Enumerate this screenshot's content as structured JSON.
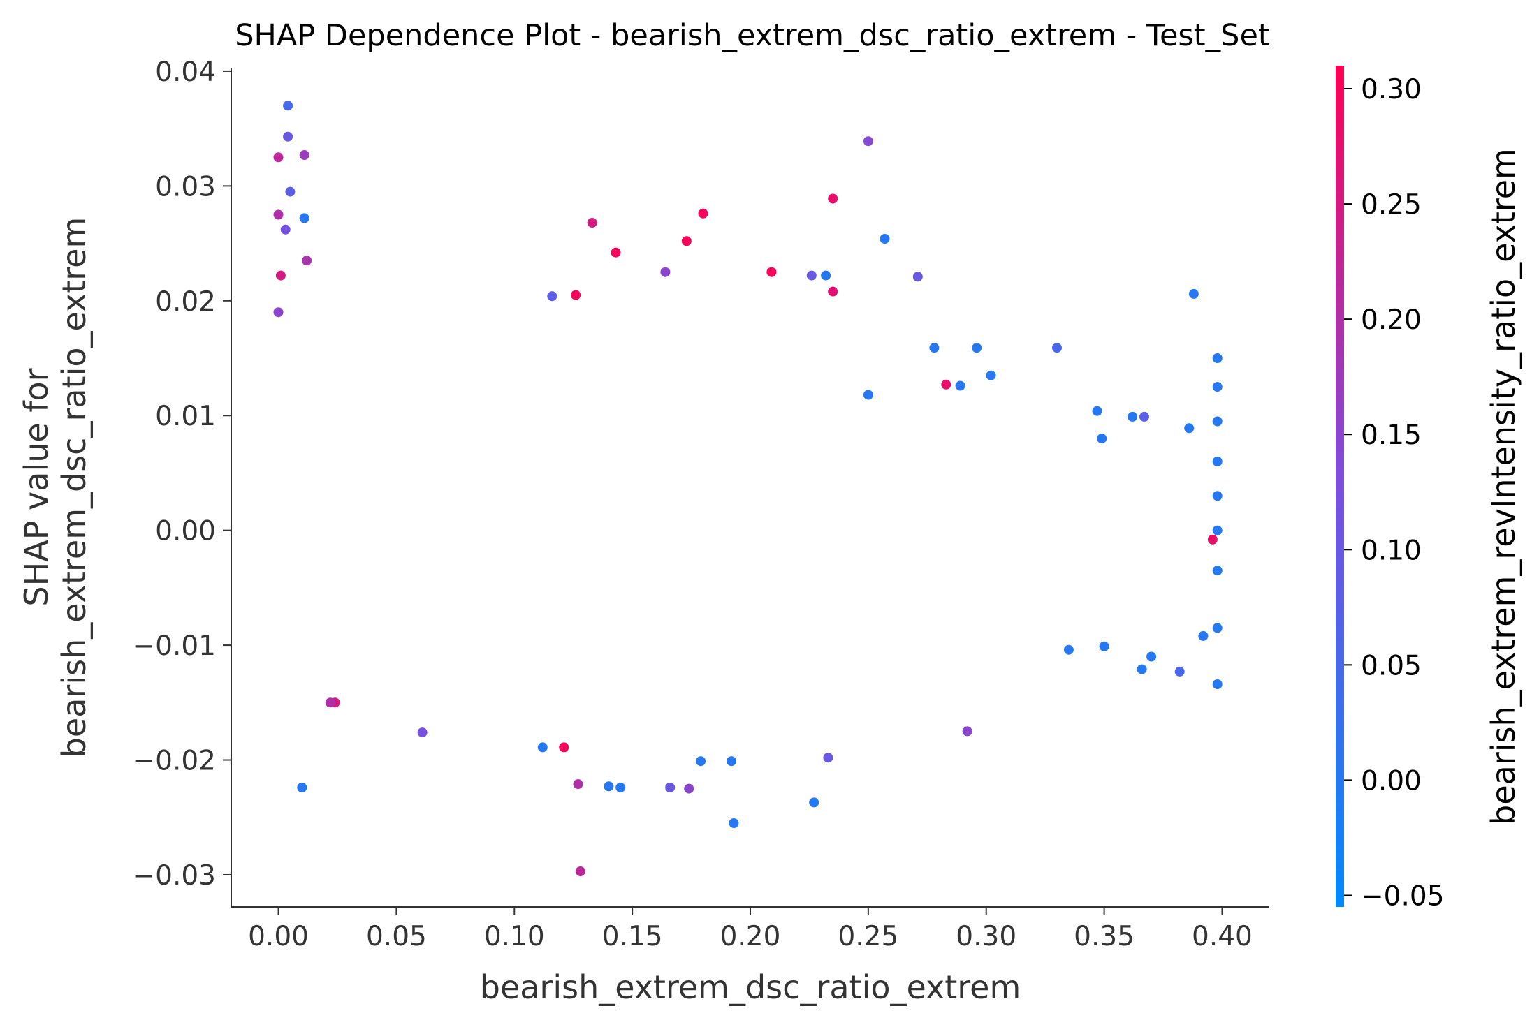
{
  "chart_data": {
    "type": "scatter",
    "title": "SHAP Dependence Plot - bearish_extrem_dsc_ratio_extrem - Test_Set",
    "xlabel": "bearish_extrem_dsc_ratio_extrem",
    "ylabel_lines": [
      "SHAP value for",
      "bearish_extrem_dsc_ratio_extrem"
    ],
    "xlim": [
      -0.02,
      0.42
    ],
    "ylim": [
      -0.0328,
      0.0403
    ],
    "xticks": [
      0.0,
      0.05,
      0.1,
      0.15,
      0.2,
      0.25,
      0.3,
      0.35,
      0.4
    ],
    "xtick_labels": [
      "0.00",
      "0.05",
      "0.10",
      "0.15",
      "0.20",
      "0.25",
      "0.30",
      "0.35",
      "0.40"
    ],
    "yticks": [
      -0.03,
      -0.02,
      -0.01,
      0.0,
      0.01,
      0.02,
      0.03,
      0.04
    ],
    "ytick_labels": [
      "−0.03",
      "−0.02",
      "−0.01",
      "0.00",
      "0.01",
      "0.02",
      "0.03",
      "0.04"
    ],
    "grid": false,
    "colorbar": {
      "label": "bearish_extrem_revIntensity_ratio_extrem",
      "range": [
        -0.055,
        0.31
      ],
      "ticks": [
        -0.05,
        0.0,
        0.05,
        0.1,
        0.15,
        0.2,
        0.25,
        0.3
      ],
      "tick_labels": [
        "−0.05",
        "0.00",
        "0.05",
        "0.10",
        "0.15",
        "0.20",
        "0.25",
        "0.30"
      ],
      "colors": [
        "#008afb",
        "#7b4fde",
        "#ff0052"
      ]
    },
    "series": [
      {
        "points": [
          {
            "x": 0.004,
            "y": 0.037,
            "c": 0.05
          },
          {
            "x": 0.004,
            "y": 0.0343,
            "c": 0.1
          },
          {
            "x": 0.0,
            "y": 0.0325,
            "c": 0.22
          },
          {
            "x": 0.011,
            "y": 0.0327,
            "c": 0.17
          },
          {
            "x": 0.0,
            "y": 0.0275,
            "c": 0.2
          },
          {
            "x": 0.011,
            "y": 0.0272,
            "c": 0.0
          },
          {
            "x": 0.003,
            "y": 0.0262,
            "c": 0.12
          },
          {
            "x": 0.012,
            "y": 0.0235,
            "c": 0.19
          },
          {
            "x": 0.001,
            "y": 0.0222,
            "c": 0.25
          },
          {
            "x": 0.005,
            "y": 0.0295,
            "c": 0.08
          },
          {
            "x": 0.0,
            "y": 0.019,
            "c": 0.15
          },
          {
            "x": 0.01,
            "y": -0.0224,
            "c": 0.0
          },
          {
            "x": 0.25,
            "y": 0.0339,
            "c": 0.14
          },
          {
            "x": 0.235,
            "y": 0.0289,
            "c": 0.28
          },
          {
            "x": 0.18,
            "y": 0.0276,
            "c": 0.3
          },
          {
            "x": 0.133,
            "y": 0.0268,
            "c": 0.25
          },
          {
            "x": 0.173,
            "y": 0.0252,
            "c": 0.3
          },
          {
            "x": 0.257,
            "y": 0.0254,
            "c": 0.0
          },
          {
            "x": 0.143,
            "y": 0.0242,
            "c": 0.3
          },
          {
            "x": 0.209,
            "y": 0.0225,
            "c": 0.3
          },
          {
            "x": 0.226,
            "y": 0.0222,
            "c": 0.1
          },
          {
            "x": 0.232,
            "y": 0.0222,
            "c": 0.0
          },
          {
            "x": 0.271,
            "y": 0.0221,
            "c": 0.1
          },
          {
            "x": 0.164,
            "y": 0.0225,
            "c": 0.15
          },
          {
            "x": 0.388,
            "y": 0.0206,
            "c": 0.0
          },
          {
            "x": 0.126,
            "y": 0.0205,
            "c": 0.3
          },
          {
            "x": 0.116,
            "y": 0.0204,
            "c": 0.08
          },
          {
            "x": 0.235,
            "y": 0.0208,
            "c": 0.27
          },
          {
            "x": 0.33,
            "y": 0.0159,
            "c": 0.05
          },
          {
            "x": 0.398,
            "y": 0.015,
            "c": 0.0
          },
          {
            "x": 0.398,
            "y": 0.0125,
            "c": 0.0
          },
          {
            "x": 0.398,
            "y": 0.0095,
            "c": 0.0
          },
          {
            "x": 0.398,
            "y": 0.006,
            "c": 0.0
          },
          {
            "x": 0.398,
            "y": 0.003,
            "c": 0.0
          },
          {
            "x": 0.398,
            "y": 0.0,
            "c": 0.0
          },
          {
            "x": 0.398,
            "y": -0.0035,
            "c": 0.0
          },
          {
            "x": 0.398,
            "y": -0.0085,
            "c": 0.0
          },
          {
            "x": 0.398,
            "y": -0.0134,
            "c": 0.0
          },
          {
            "x": 0.392,
            "y": -0.0092,
            "c": 0.0
          },
          {
            "x": 0.396,
            "y": -0.0008,
            "c": 0.28
          },
          {
            "x": 0.386,
            "y": 0.0089,
            "c": 0.0
          },
          {
            "x": 0.382,
            "y": -0.0123,
            "c": 0.05
          },
          {
            "x": 0.367,
            "y": 0.0099,
            "c": 0.08
          },
          {
            "x": 0.362,
            "y": 0.0099,
            "c": 0.0
          },
          {
            "x": 0.37,
            "y": -0.011,
            "c": 0.0
          },
          {
            "x": 0.366,
            "y": -0.0121,
            "c": 0.0
          },
          {
            "x": 0.347,
            "y": 0.0104,
            "c": 0.0
          },
          {
            "x": 0.349,
            "y": 0.008,
            "c": 0.0
          },
          {
            "x": 0.335,
            "y": -0.0104,
            "c": 0.0
          },
          {
            "x": 0.35,
            "y": -0.0101,
            "c": 0.0
          },
          {
            "x": 0.292,
            "y": -0.0175,
            "c": 0.15
          },
          {
            "x": 0.283,
            "y": 0.0127,
            "c": 0.28
          },
          {
            "x": 0.289,
            "y": 0.0126,
            "c": 0.0
          },
          {
            "x": 0.302,
            "y": 0.0135,
            "c": 0.0
          },
          {
            "x": 0.296,
            "y": 0.0159,
            "c": 0.0
          },
          {
            "x": 0.278,
            "y": 0.0159,
            "c": 0.0
          },
          {
            "x": 0.25,
            "y": 0.0118,
            "c": 0.0
          },
          {
            "x": 0.227,
            "y": -0.0237,
            "c": 0.0
          },
          {
            "x": 0.193,
            "y": -0.0255,
            "c": 0.0
          },
          {
            "x": 0.128,
            "y": -0.0297,
            "c": 0.22
          },
          {
            "x": 0.127,
            "y": -0.0221,
            "c": 0.2
          },
          {
            "x": 0.14,
            "y": -0.0223,
            "c": 0.0
          },
          {
            "x": 0.145,
            "y": -0.0224,
            "c": 0.0
          },
          {
            "x": 0.166,
            "y": -0.0224,
            "c": 0.1
          },
          {
            "x": 0.174,
            "y": -0.0225,
            "c": 0.15
          },
          {
            "x": 0.179,
            "y": -0.0201,
            "c": 0.0
          },
          {
            "x": 0.192,
            "y": -0.0201,
            "c": 0.0
          },
          {
            "x": 0.233,
            "y": -0.0198,
            "c": 0.1
          },
          {
            "x": 0.061,
            "y": -0.0176,
            "c": 0.12
          },
          {
            "x": 0.024,
            "y": -0.015,
            "c": 0.25
          },
          {
            "x": 0.022,
            "y": -0.015,
            "c": 0.2
          },
          {
            "x": 0.112,
            "y": -0.0189,
            "c": 0.0
          },
          {
            "x": 0.121,
            "y": -0.0189,
            "c": 0.3
          }
        ]
      }
    ]
  }
}
